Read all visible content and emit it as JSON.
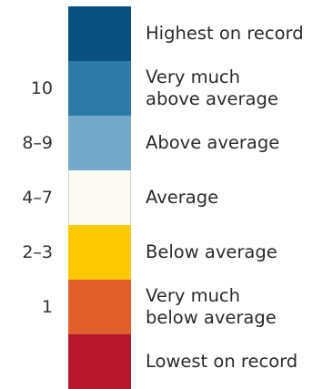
{
  "legend": {
    "rows": [
      {
        "decile": "",
        "label": "Highest on record",
        "color": "#0b5180"
      },
      {
        "decile": "10",
        "label": "Very much\nabove average",
        "color": "#2d7aa6"
      },
      {
        "decile": "8–9",
        "label": "Above average",
        "color": "#75a9cc"
      },
      {
        "decile": "4–7",
        "label": "Average",
        "color": "#fdfaf3"
      },
      {
        "decile": "2–3",
        "label": "Below average",
        "color": "#fbc900"
      },
      {
        "decile": "1",
        "label": "Very much\nbelow average",
        "color": "#e05f2c"
      },
      {
        "decile": "",
        "label": "Lowest on record",
        "color": "#b4172e"
      }
    ]
  }
}
